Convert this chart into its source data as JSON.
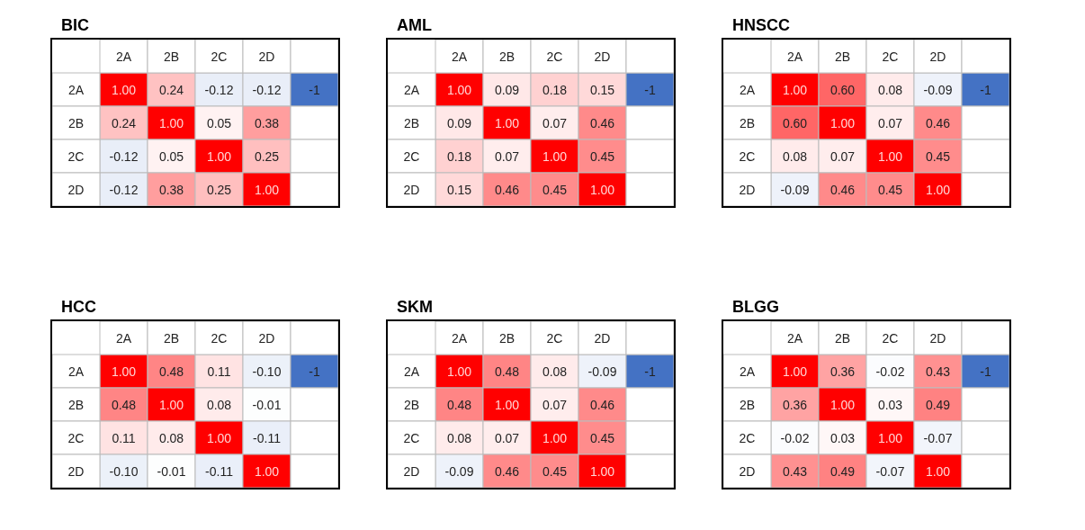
{
  "chart_data": [
    {
      "type": "heatmap",
      "title": "BIC",
      "categories": [
        "2A",
        "2B",
        "2C",
        "2D",
        null
      ],
      "y_categories": [
        "2A",
        "2B",
        "2C",
        "2D"
      ],
      "cells": [
        [
          1.0,
          0.24,
          -0.12,
          -0.12,
          -1
        ],
        [
          0.24,
          1.0,
          0.05,
          0.38,
          null
        ],
        [
          -0.12,
          0.05,
          1.0,
          0.25,
          null
        ],
        [
          -0.12,
          0.38,
          0.25,
          1.0,
          null
        ]
      ],
      "cell_labels": [
        [
          "1.00",
          "0.24",
          "-0.12",
          "-0.12",
          "-1"
        ],
        [
          "0.24",
          "1.00",
          "0.05",
          "0.38",
          null
        ],
        [
          "-0.12",
          "0.05",
          "1.00",
          "0.25",
          null
        ],
        [
          "-0.12",
          "0.38",
          "0.25",
          "1.00",
          null
        ]
      ]
    },
    {
      "type": "heatmap",
      "title": "AML",
      "categories": [
        "2A",
        "2B",
        "2C",
        "2D",
        null
      ],
      "y_categories": [
        "2A",
        "2B",
        "2C",
        "2D"
      ],
      "cells": [
        [
          1.0,
          0.09,
          0.18,
          0.15,
          -1
        ],
        [
          0.09,
          1.0,
          0.07,
          0.46,
          null
        ],
        [
          0.18,
          0.07,
          1.0,
          0.45,
          null
        ],
        [
          0.15,
          0.46,
          0.45,
          1.0,
          null
        ]
      ],
      "cell_labels": [
        [
          "1.00",
          "0.09",
          "0.18",
          "0.15",
          "-1"
        ],
        [
          "0.09",
          "1.00",
          "0.07",
          "0.46",
          null
        ],
        [
          "0.18",
          "0.07",
          "1.00",
          "0.45",
          null
        ],
        [
          "0.15",
          "0.46",
          "0.45",
          "1.00",
          null
        ]
      ]
    },
    {
      "type": "heatmap",
      "title": "HNSCC",
      "categories": [
        "2A",
        "2B",
        "2C",
        "2D",
        null
      ],
      "y_categories": [
        "2A",
        "2B",
        "2C",
        "2D"
      ],
      "cells": [
        [
          1.0,
          0.6,
          0.08,
          -0.09,
          -1
        ],
        [
          0.6,
          1.0,
          0.07,
          0.46,
          null
        ],
        [
          0.08,
          0.07,
          1.0,
          0.45,
          null
        ],
        [
          -0.09,
          0.46,
          0.45,
          1.0,
          null
        ]
      ],
      "cell_labels": [
        [
          "1.00",
          "0.60",
          "0.08",
          "-0.09",
          "-1"
        ],
        [
          "0.60",
          "1.00",
          "0.07",
          "0.46",
          null
        ],
        [
          "0.08",
          "0.07",
          "1.00",
          "0.45",
          null
        ],
        [
          "-0.09",
          "0.46",
          "0.45",
          "1.00",
          null
        ]
      ]
    },
    {
      "type": "heatmap",
      "title": "HCC",
      "categories": [
        "2A",
        "2B",
        "2C",
        "2D",
        null
      ],
      "y_categories": [
        "2A",
        "2B",
        "2C",
        "2D"
      ],
      "cells": [
        [
          1.0,
          0.48,
          0.11,
          -0.1,
          -1
        ],
        [
          0.48,
          1.0,
          0.08,
          -0.01,
          null
        ],
        [
          0.11,
          0.08,
          1.0,
          -0.11,
          null
        ],
        [
          -0.1,
          -0.01,
          -0.11,
          1.0,
          null
        ]
      ],
      "cell_labels": [
        [
          "1.00",
          "0.48",
          "0.11",
          "-0.10",
          "-1"
        ],
        [
          "0.48",
          "1.00",
          "0.08",
          "-0.01",
          null
        ],
        [
          "0.11",
          "0.08",
          "1.00",
          "-0.11",
          null
        ],
        [
          "-0.10",
          "-0.01",
          "-0.11",
          "1.00",
          null
        ]
      ]
    },
    {
      "type": "heatmap",
      "title": "SKM",
      "categories": [
        "2A",
        "2B",
        "2C",
        "2D",
        null
      ],
      "y_categories": [
        "2A",
        "2B",
        "2C",
        "2D"
      ],
      "cells": [
        [
          1.0,
          0.48,
          0.08,
          -0.09,
          -1
        ],
        [
          0.48,
          1.0,
          0.07,
          0.46,
          null
        ],
        [
          0.08,
          0.07,
          1.0,
          0.45,
          null
        ],
        [
          -0.09,
          0.46,
          0.45,
          1.0,
          null
        ]
      ],
      "cell_labels": [
        [
          "1.00",
          "0.48",
          "0.08",
          "-0.09",
          "-1"
        ],
        [
          "0.48",
          "1.00",
          "0.07",
          "0.46",
          null
        ],
        [
          "0.08",
          "0.07",
          "1.00",
          "0.45",
          null
        ],
        [
          "-0.09",
          "0.46",
          "0.45",
          "1.00",
          null
        ]
      ]
    },
    {
      "type": "heatmap",
      "title": "BLGG",
      "categories": [
        "2A",
        "2B",
        "2C",
        "2D",
        null
      ],
      "y_categories": [
        "2A",
        "2B",
        "2C",
        "2D"
      ],
      "cells": [
        [
          1.0,
          0.36,
          -0.02,
          0.43,
          -1
        ],
        [
          0.36,
          1.0,
          0.03,
          0.49,
          null
        ],
        [
          -0.02,
          0.03,
          1.0,
          -0.07,
          null
        ],
        [
          0.43,
          0.49,
          -0.07,
          1.0,
          null
        ]
      ],
      "cell_labels": [
        [
          "1.00",
          "0.36",
          "-0.02",
          "0.43",
          "-1"
        ],
        [
          "0.36",
          "1.00",
          "0.03",
          "0.49",
          null
        ],
        [
          "-0.02",
          "0.03",
          "1.00",
          "-0.07",
          null
        ],
        [
          "0.43",
          "0.49",
          "-0.07",
          "1.00",
          null
        ]
      ]
    }
  ]
}
